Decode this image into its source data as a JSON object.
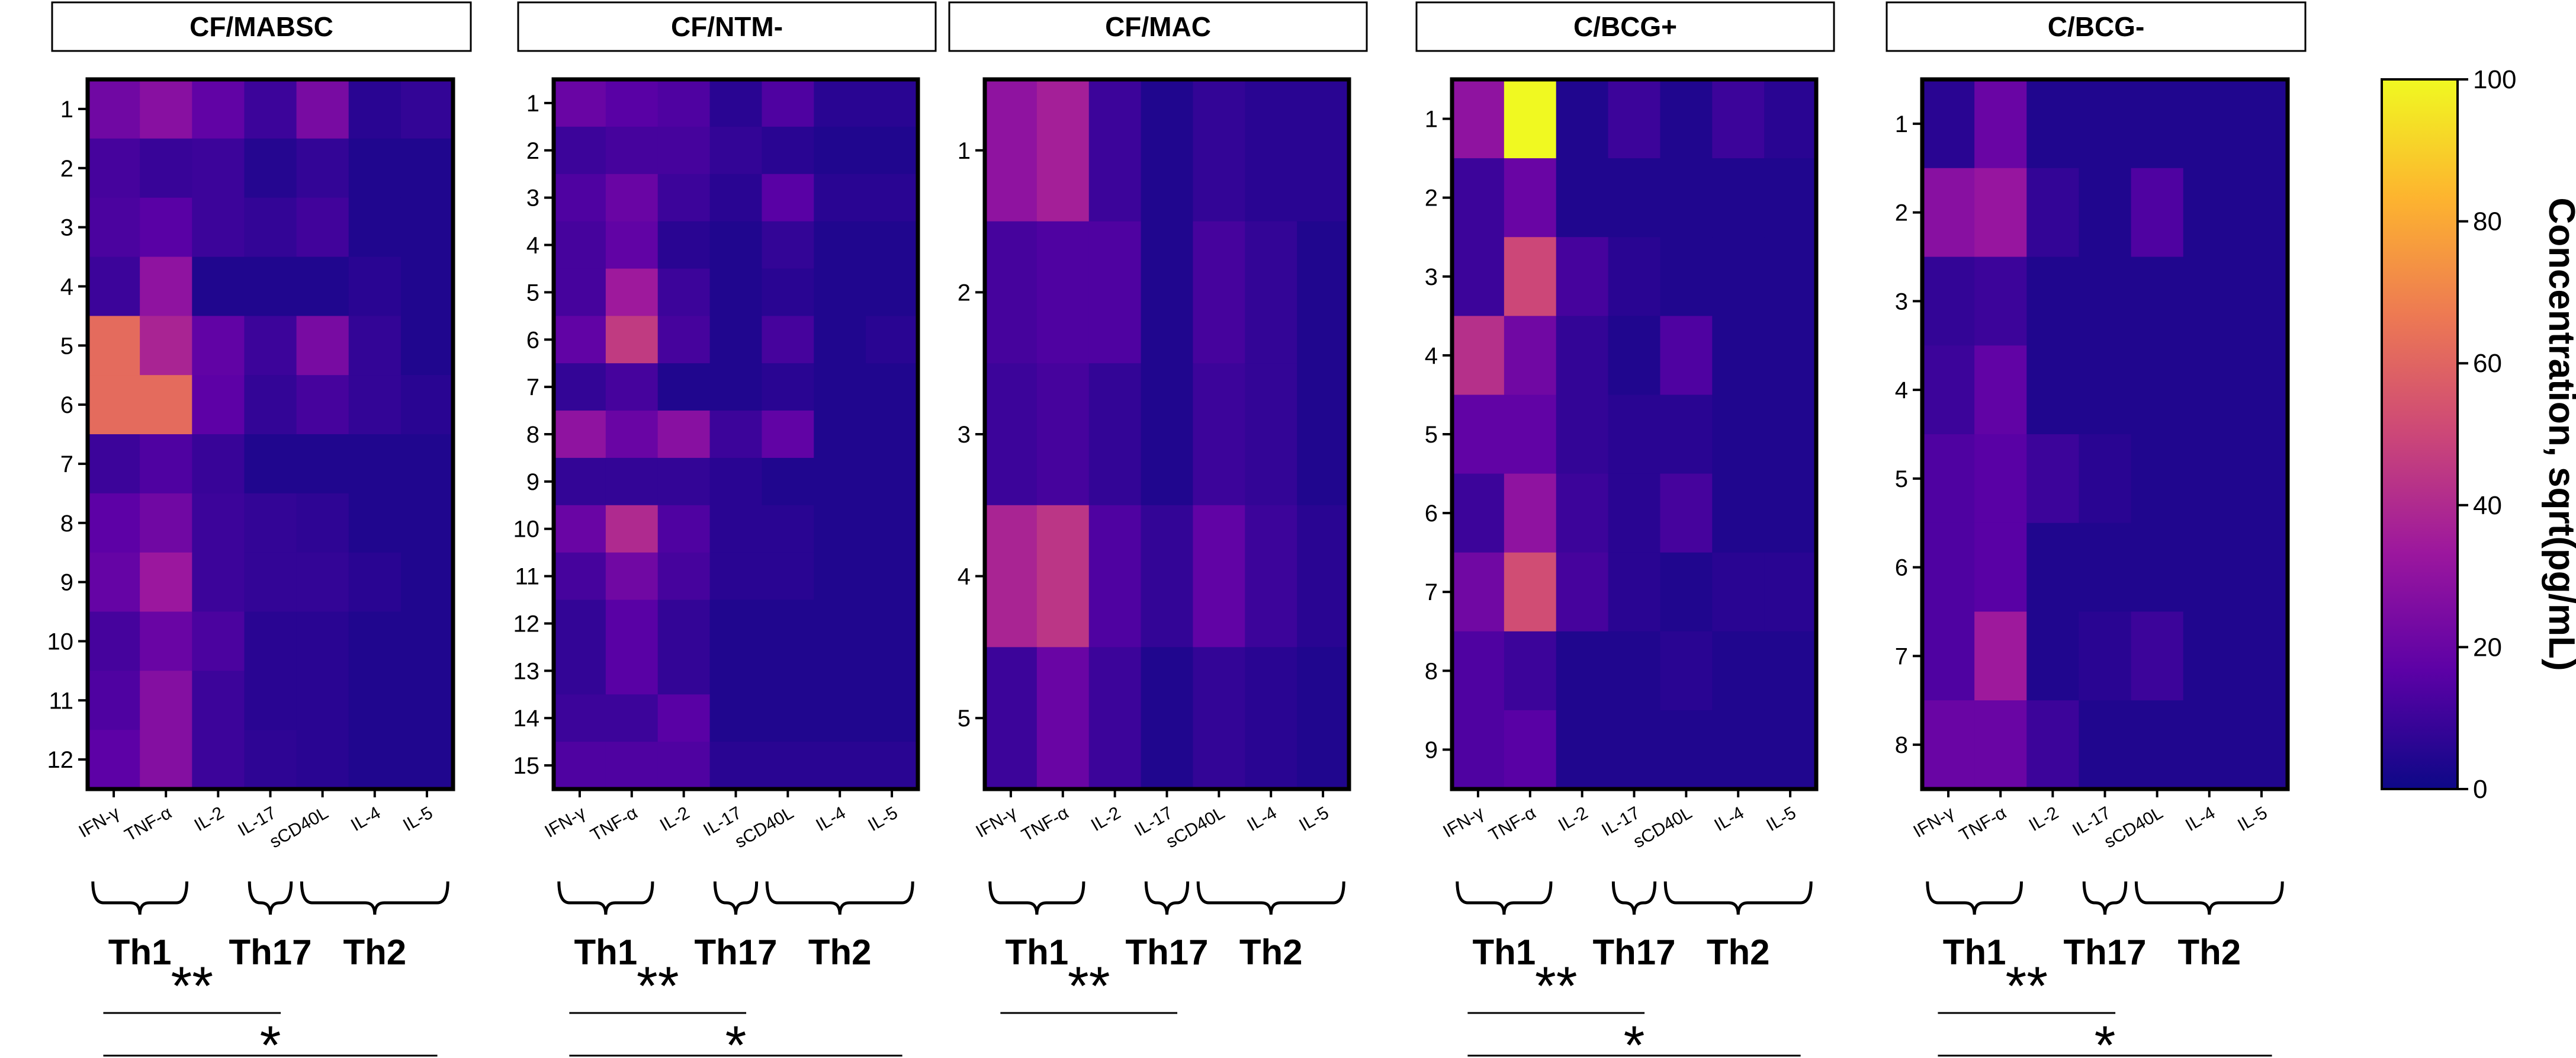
{
  "chart_data": {
    "type": "heatmap",
    "colorbar": {
      "title": "Concentration, sqrt(pg/mL)",
      "range": [
        0,
        100
      ],
      "ticks": [
        "0",
        "20",
        "40",
        "60",
        "80",
        "100"
      ],
      "colormap": "plasma",
      "stops": [
        "#0d0887",
        "#5c01a6",
        "#9c179e",
        "#cc4778",
        "#ed7953",
        "#fdb42f",
        "#f0f921"
      ]
    },
    "panels": [
      {
        "title": "CF/MABSC",
        "columns": [
          "IFN-γ",
          "TNF-α",
          "IL-2",
          "IL-17",
          "sCD40L",
          "IL-4",
          "IL-5"
        ],
        "rows": [
          "1",
          "2",
          "3",
          "4",
          "5",
          "6",
          "7",
          "8",
          "9",
          "10",
          "11",
          "12"
        ],
        "values": [
          [
            22,
            28,
            18,
            10,
            24,
            6,
            8
          ],
          [
            12,
            9,
            10,
            5,
            8,
            4,
            4
          ],
          [
            13,
            16,
            10,
            8,
            11,
            4,
            4
          ],
          [
            10,
            30,
            4,
            4,
            4,
            6,
            4
          ],
          [
            62,
            38,
            18,
            10,
            24,
            8,
            4
          ],
          [
            62,
            62,
            17,
            8,
            12,
            8,
            6
          ],
          [
            10,
            14,
            9,
            4,
            4,
            4,
            4
          ],
          [
            17,
            22,
            10,
            8,
            7,
            4,
            4
          ],
          [
            19,
            33,
            10,
            8,
            8,
            6,
            4
          ],
          [
            12,
            20,
            13,
            6,
            6,
            4,
            4
          ],
          [
            14,
            27,
            10,
            6,
            6,
            4,
            4
          ],
          [
            17,
            27,
            10,
            7,
            6,
            4,
            4
          ]
        ],
        "groups": [
          "Th1",
          "Th17",
          "Th2"
        ],
        "significance": [
          "**",
          "*"
        ]
      },
      {
        "title": "CF/NTM-",
        "columns": [
          "IFN-γ",
          "TNF-α",
          "IL-2",
          "IL-17",
          "sCD40L",
          "IL-4",
          "IL-5"
        ],
        "rows": [
          "1",
          "2",
          "3",
          "4",
          "5",
          "6",
          "7",
          "8",
          "9",
          "10",
          "11",
          "12",
          "13",
          "14",
          "15"
        ],
        "values": [
          [
            20,
            16,
            14,
            6,
            14,
            6,
            6
          ],
          [
            10,
            12,
            12,
            8,
            6,
            4,
            4
          ],
          [
            14,
            20,
            10,
            6,
            16,
            6,
            6
          ],
          [
            12,
            18,
            6,
            4,
            8,
            4,
            4
          ],
          [
            12,
            34,
            10,
            4,
            6,
            4,
            4
          ],
          [
            18,
            46,
            12,
            4,
            12,
            4,
            6
          ],
          [
            8,
            12,
            4,
            4,
            6,
            4,
            4
          ],
          [
            30,
            20,
            28,
            10,
            18,
            4,
            4
          ],
          [
            8,
            8,
            8,
            6,
            4,
            4,
            4
          ],
          [
            20,
            40,
            14,
            6,
            6,
            4,
            4
          ],
          [
            12,
            22,
            12,
            6,
            6,
            4,
            4
          ],
          [
            8,
            16,
            8,
            4,
            4,
            4,
            4
          ],
          [
            8,
            16,
            8,
            4,
            4,
            4,
            4
          ],
          [
            10,
            10,
            16,
            4,
            4,
            4,
            4
          ],
          [
            14,
            14,
            14,
            6,
            6,
            6,
            6
          ]
        ],
        "groups": [
          "Th1",
          "Th17",
          "Th2"
        ],
        "significance": [
          "**",
          "*"
        ]
      },
      {
        "title": "CF/MAC",
        "columns": [
          "IFN-γ",
          "TNF-α",
          "IL-2",
          "IL-17",
          "sCD40L",
          "IL-4",
          "IL-5"
        ],
        "rows": [
          "1",
          "2",
          "3",
          "4",
          "5"
        ],
        "values": [
          [
            30,
            36,
            10,
            4,
            8,
            6,
            6
          ],
          [
            12,
            14,
            14,
            4,
            12,
            8,
            4
          ],
          [
            10,
            12,
            8,
            4,
            10,
            8,
            4
          ],
          [
            38,
            44,
            14,
            8,
            18,
            10,
            6
          ],
          [
            10,
            20,
            10,
            4,
            8,
            6,
            4
          ]
        ],
        "groups": [
          "Th1",
          "Th17",
          "Th2"
        ],
        "significance": [
          "**"
        ]
      },
      {
        "title": "C/BCG+",
        "columns": [
          "IFN-γ",
          "TNF-α",
          "IL-2",
          "IL-17",
          "sCD40L",
          "IL-4",
          "IL-5"
        ],
        "rows": [
          "1",
          "2",
          "3",
          "4",
          "5",
          "6",
          "7",
          "8",
          "9"
        ],
        "values": [
          [
            30,
            100,
            4,
            10,
            4,
            10,
            6
          ],
          [
            10,
            20,
            4,
            4,
            4,
            4,
            4
          ],
          [
            10,
            50,
            12,
            6,
            4,
            4,
            4
          ],
          [
            42,
            22,
            8,
            4,
            14,
            4,
            4
          ],
          [
            18,
            18,
            8,
            6,
            6,
            4,
            4
          ],
          [
            10,
            30,
            10,
            6,
            12,
            4,
            4
          ],
          [
            22,
            52,
            12,
            6,
            4,
            6,
            6
          ],
          [
            14,
            10,
            4,
            4,
            6,
            4,
            4
          ],
          [
            14,
            16,
            4,
            4,
            4,
            4,
            4
          ]
        ],
        "groups": [
          "Th1",
          "Th17",
          "Th2"
        ],
        "significance": [
          "**",
          "*"
        ]
      },
      {
        "title": "C/BCG-",
        "columns": [
          "IFN-γ",
          "TNF-α",
          "IL-2",
          "IL-17",
          "sCD40L",
          "IL-4",
          "IL-5"
        ],
        "rows": [
          "1",
          "2",
          "3",
          "4",
          "5",
          "6",
          "7",
          "8"
        ],
        "values": [
          [
            6,
            20,
            4,
            4,
            4,
            4,
            4
          ],
          [
            28,
            32,
            8,
            4,
            14,
            4,
            4
          ],
          [
            8,
            10,
            4,
            4,
            4,
            4,
            4
          ],
          [
            10,
            18,
            4,
            4,
            4,
            4,
            4
          ],
          [
            14,
            16,
            10,
            6,
            4,
            4,
            4
          ],
          [
            14,
            16,
            4,
            4,
            4,
            4,
            4
          ],
          [
            14,
            34,
            4,
            6,
            10,
            4,
            4
          ],
          [
            20,
            20,
            10,
            4,
            4,
            4,
            4
          ]
        ],
        "groups": [
          "Th1",
          "Th17",
          "Th2"
        ],
        "significance": [
          "**",
          "*"
        ]
      }
    ]
  }
}
